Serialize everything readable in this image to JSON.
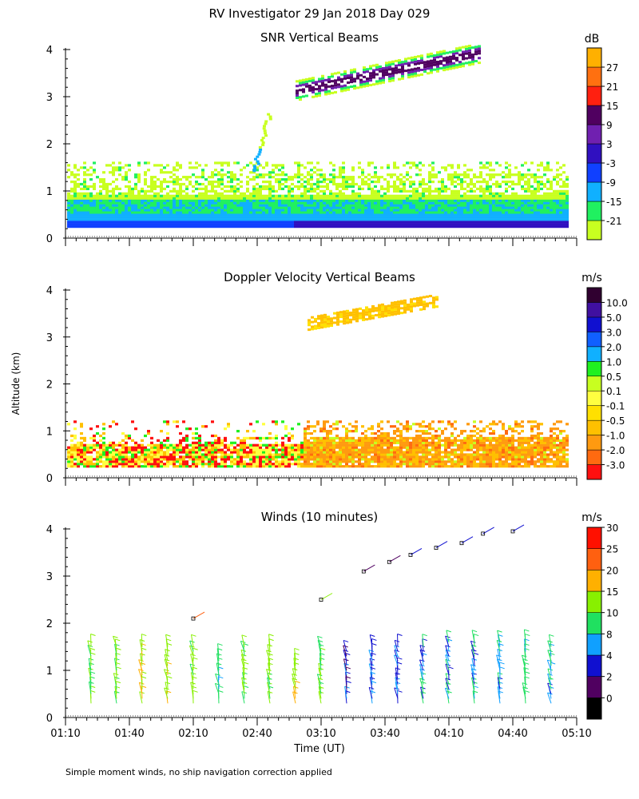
{
  "figure_title": "RV Investigator  29 Jan 2018 Day 029",
  "y_axis_label": "Altitude (km)",
  "x_axis_label": "Time (UT)",
  "footnote": "Simple moment winds, no ship navigation correction applied",
  "colors": {
    "snr": [
      "#c8ff20",
      "#20f060",
      "#10b0ff",
      "#1040ff",
      "#3010c0",
      "#7020b0",
      "#500060",
      "#ff2010",
      "#ff7010",
      "#ffb000"
    ],
    "doppler": [
      "#ff1010",
      "#ff6a10",
      "#ff9a10",
      "#ffc000",
      "#ffe000",
      "#ffff40",
      "#c8ff20",
      "#20f020",
      "#10b0ff",
      "#1060ff",
      "#1010d0",
      "#4010a0",
      "#300030"
    ],
    "winds": [
      "#000000",
      "#500060",
      "#1010d0",
      "#10a0ff",
      "#20e060",
      "#88f000",
      "#ffb000",
      "#ff6010",
      "#ff1000"
    ]
  },
  "chart_data": [
    {
      "type": "heatmap",
      "title": "SNR Vertical Beams",
      "units": "dB",
      "x": {
        "label": "Time (UT)",
        "ticks": [
          "01:10",
          "01:40",
          "02:10",
          "02:40",
          "03:10",
          "03:40",
          "04:10",
          "04:40",
          "05:10"
        ],
        "range_minutes": [
          70,
          310
        ]
      },
      "y": {
        "label": "Altitude (km)",
        "ticks": [
          "0",
          "1",
          "2",
          "3",
          "4"
        ],
        "range": [
          0,
          4
        ]
      },
      "colorbar": {
        "labels": [
          "27",
          "21",
          "15",
          "9",
          "3",
          "-3",
          "-9",
          "-15",
          "-21"
        ],
        "levels": [
          -21,
          -15,
          -9,
          -3,
          3,
          9,
          15,
          21,
          27,
          33
        ]
      },
      "features": [
        {
          "name": "boundary-layer",
          "t_start": "01:10",
          "t_end": "05:10",
          "alt_km": [
            0.2,
            1.6
          ]
        },
        {
          "name": "elevated-layer",
          "t_start": "03:10",
          "t_end": "04:10",
          "alt_km": [
            2.9,
            4.0
          ]
        }
      ]
    },
    {
      "type": "heatmap",
      "title": "Doppler Velocity Vertical Beams",
      "units": "m/s",
      "x": {
        "label": "Time (UT)",
        "ticks": [
          "01:10",
          "01:40",
          "02:10",
          "02:40",
          "03:10",
          "03:40",
          "04:10",
          "04:40",
          "05:10"
        ],
        "range_minutes": [
          70,
          310
        ]
      },
      "y": {
        "label": "Altitude (km)",
        "ticks": [
          "0",
          "1",
          "2",
          "3",
          "4"
        ],
        "range": [
          0,
          4
        ]
      },
      "colorbar": {
        "labels": [
          "10.0",
          "5.0",
          "3.0",
          "2.0",
          "1.0",
          "0.5",
          "0.1",
          "-0.1",
          "-0.5",
          "-1.0",
          "-2.0",
          "-3.0"
        ],
        "levels": [
          -4,
          -3,
          -2,
          -1,
          -0.5,
          -0.1,
          0.1,
          0.5,
          1,
          2,
          3,
          5,
          10,
          15
        ]
      },
      "features": [
        {
          "name": "boundary-layer",
          "t_start": "01:10",
          "t_end": "05:10",
          "alt_km": [
            0.2,
            1.2
          ]
        },
        {
          "name": "elevated-layer",
          "t_start": "03:05",
          "t_end": "03:50",
          "alt_km": [
            3.0,
            4.0
          ]
        }
      ]
    },
    {
      "type": "wind-barbs",
      "title": "Winds (10 minutes)",
      "units": "m/s",
      "x": {
        "label": "Time (UT)",
        "ticks": [
          "01:10",
          "01:40",
          "02:10",
          "02:40",
          "03:10",
          "03:40",
          "04:10",
          "04:40",
          "05:10"
        ],
        "range_minutes": [
          70,
          310
        ]
      },
      "y": {
        "label": "Altitude (km)",
        "ticks": [
          "0",
          "1",
          "2",
          "3",
          "4"
        ],
        "range": [
          0,
          4
        ]
      },
      "colorbar": {
        "labels": [
          "30",
          "25",
          "20",
          "15",
          "10",
          "8",
          "4",
          "2",
          "0"
        ],
        "levels": [
          0,
          2,
          4,
          8,
          10,
          15,
          20,
          25,
          30,
          35
        ]
      },
      "profiles": [
        {
          "time_min": 82,
          "speed_ms": 16,
          "top_km": 1.6
        },
        {
          "time_min": 94,
          "speed_ms": 17,
          "top_km": 1.6
        },
        {
          "time_min": 106,
          "speed_ms": 19,
          "top_km": 1.55
        },
        {
          "time_min": 118,
          "speed_ms": 18,
          "top_km": 1.55
        },
        {
          "time_min": 130,
          "speed_ms": 17,
          "top_km": 1.55
        },
        {
          "time_min": 142,
          "speed_ms": 12,
          "top_km": 1.4
        },
        {
          "time_min": 154,
          "speed_ms": 16,
          "top_km": 1.6
        },
        {
          "time_min": 166,
          "speed_ms": 16,
          "top_km": 1.55
        },
        {
          "time_min": 178,
          "speed_ms": 19,
          "top_km": 1.2
        },
        {
          "time_min": 190,
          "speed_ms": 15,
          "top_km": 1.6
        },
        {
          "time_min": 202,
          "speed_ms": 6,
          "top_km": 1.5
        },
        {
          "time_min": 214,
          "speed_ms": 7,
          "top_km": 1.6
        },
        {
          "time_min": 226,
          "speed_ms": 7,
          "top_km": 1.6
        },
        {
          "time_min": 238,
          "speed_ms": 9,
          "top_km": 1.6
        },
        {
          "time_min": 250,
          "speed_ms": 9,
          "top_km": 1.7
        },
        {
          "time_min": 262,
          "speed_ms": 10,
          "top_km": 1.7
        },
        {
          "time_min": 274,
          "speed_ms": 9,
          "top_km": 1.7
        },
        {
          "time_min": 286,
          "speed_ms": 12,
          "top_km": 1.7
        },
        {
          "time_min": 298,
          "speed_ms": 10,
          "top_km": 1.6
        }
      ],
      "upper_barbs": [
        {
          "time_min": 130,
          "alt_km": 2.1,
          "speed_ms": 27
        },
        {
          "time_min": 190,
          "alt_km": 2.5,
          "speed_ms": 19
        },
        {
          "time_min": 210,
          "alt_km": 3.1,
          "speed_ms": 3
        },
        {
          "time_min": 222,
          "alt_km": 3.3,
          "speed_ms": 3
        },
        {
          "time_min": 232,
          "alt_km": 3.45,
          "speed_ms": 4
        },
        {
          "time_min": 244,
          "alt_km": 3.6,
          "speed_ms": 4
        },
        {
          "time_min": 256,
          "alt_km": 3.7,
          "speed_ms": 4
        },
        {
          "time_min": 266,
          "alt_km": 3.9,
          "speed_ms": 5
        },
        {
          "time_min": 280,
          "alt_km": 3.95,
          "speed_ms": 6
        }
      ]
    }
  ]
}
